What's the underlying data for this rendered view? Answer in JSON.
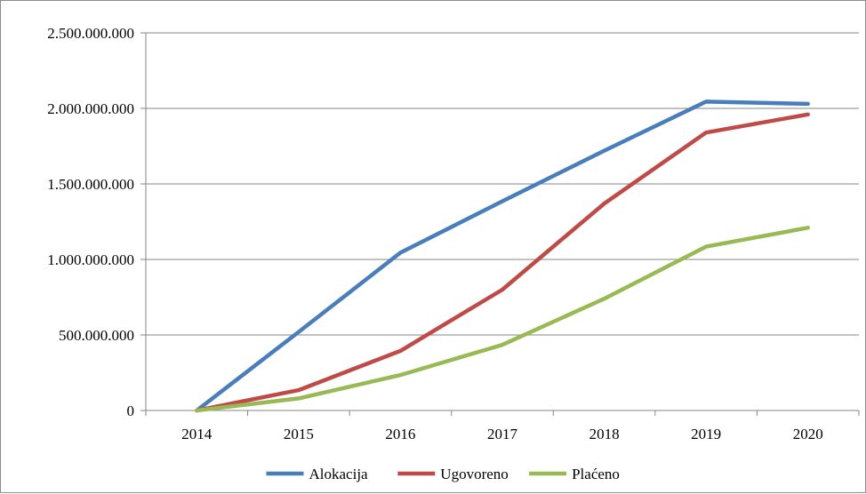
{
  "chart_data": {
    "type": "line",
    "title": "",
    "xlabel": "",
    "ylabel": "",
    "categories": [
      "2014",
      "2015",
      "2016",
      "2017",
      "2018",
      "2019",
      "2020"
    ],
    "ylim": [
      0,
      2500000000
    ],
    "y_ticks": [
      0,
      500000000,
      1000000000,
      1500000000,
      2000000000,
      2500000000
    ],
    "y_tick_labels": [
      "0",
      "500.000.000",
      "1.000.000.000",
      "1.500.000.000",
      "2.000.000.000",
      "2.500.000.000"
    ],
    "grid": true,
    "legend_position": "bottom",
    "series": [
      {
        "name": "Alokacija",
        "color": "#4a7ebb",
        "values": [
          0,
          520000000,
          1045000000,
          1385000000,
          1720000000,
          2045000000,
          2030000000
        ]
      },
      {
        "name": "Ugovoreno",
        "color": "#be4b48",
        "values": [
          0,
          135000000,
          395000000,
          800000000,
          1370000000,
          1840000000,
          1960000000
        ]
      },
      {
        "name": "Plaćeno",
        "color": "#98b954",
        "values": [
          0,
          80000000,
          235000000,
          435000000,
          740000000,
          1085000000,
          1210000000
        ]
      }
    ]
  }
}
